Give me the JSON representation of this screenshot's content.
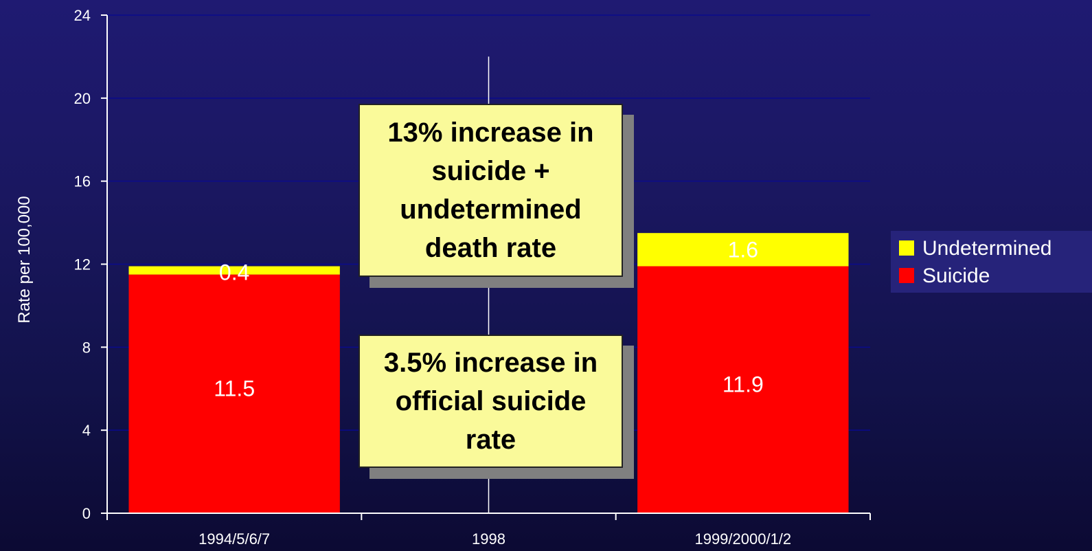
{
  "chart_data": {
    "type": "bar",
    "stacked": true,
    "categories": [
      "1994/5/6/7",
      "1998",
      "1999/2000/1/2"
    ],
    "series": [
      {
        "name": "Suicide",
        "color": "#ff0000",
        "values": [
          11.5,
          null,
          11.9
        ]
      },
      {
        "name": "Undetermined",
        "color": "#ffff00",
        "values": [
          0.4,
          null,
          1.6
        ]
      }
    ],
    "data_labels": [
      {
        "category": "1994/5/6/7",
        "series": "Undetermined",
        "text": "0.4"
      },
      {
        "category": "1994/5/6/7",
        "series": "Suicide",
        "text": "11.5"
      },
      {
        "category": "1999/2000/1/2",
        "series": "Undetermined",
        "text": "1.6"
      },
      {
        "category": "1999/2000/1/2",
        "series": "Suicide",
        "text": "11.9"
      }
    ],
    "title": "",
    "xlabel": "",
    "ylabel": "Rate per 100,000",
    "ylim": [
      0,
      24
    ],
    "yticks": [
      "0",
      "4",
      "8",
      "12",
      "16",
      "20",
      "24"
    ],
    "grid": true,
    "divider_at_category": "1998",
    "legend": {
      "position": "right",
      "entries": [
        {
          "label": "Undetermined",
          "color": "#ffff00"
        },
        {
          "label": "Suicide",
          "color": "#ff0000"
        }
      ]
    }
  },
  "annotations": {
    "callout_top": "13% increase in suicide + undetermined death rate",
    "callout_bottom": "3.5% increase in official suicide rate"
  }
}
